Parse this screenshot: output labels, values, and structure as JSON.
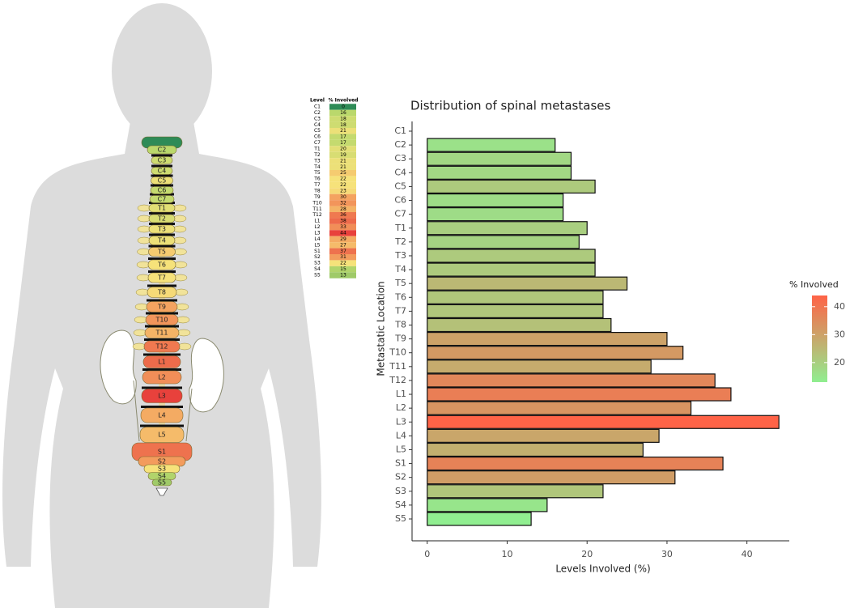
{
  "chart_data": {
    "type": "bar",
    "orientation": "horizontal",
    "title": "Distribution of spinal metastases",
    "x_label": "Levels Involved (%)",
    "y_label": "Metastatic Location",
    "categories": [
      "C1",
      "C2",
      "C3",
      "C4",
      "C5",
      "C6",
      "C7",
      "T1",
      "T2",
      "T3",
      "T4",
      "T5",
      "T6",
      "T7",
      "T8",
      "T9",
      "T10",
      "T11",
      "T12",
      "L1",
      "L2",
      "L3",
      "L4",
      "L5",
      "S1",
      "S2",
      "S3",
      "S4",
      "S5"
    ],
    "values": [
      0,
      16,
      18,
      18,
      21,
      17,
      17,
      20,
      19,
      21,
      21,
      25,
      22,
      22,
      23,
      30,
      32,
      28,
      36,
      38,
      33,
      44,
      29,
      27,
      37,
      31,
      22,
      15,
      13
    ],
    "xlim": [
      -1.9,
      45.3
    ],
    "xticks": [
      0,
      10,
      20,
      30,
      40
    ],
    "colorbar": {
      "title": "% Involved",
      "lim": [
        13,
        44
      ],
      "ticks": [
        20,
        30,
        40
      ],
      "low": "#90ee90",
      "high": "#ff6347"
    }
  },
  "table": {
    "headers": [
      "Level",
      "% Involved"
    ]
  }
}
